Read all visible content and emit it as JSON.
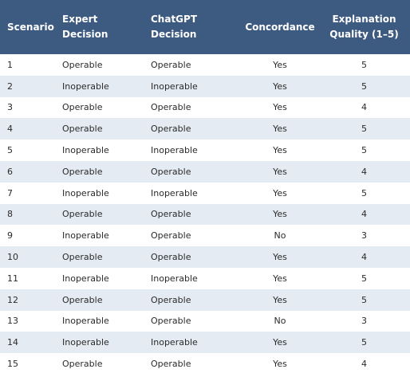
{
  "table": {
    "headers": {
      "scenario": "Scenario",
      "expert": "Expert Decision",
      "chatgpt": "ChatGPT Decision",
      "concordance": "Concordance",
      "quality_line1": "Explanation",
      "quality_line2": "Quality (1–5)"
    },
    "rows": [
      {
        "scenario": "1",
        "expert": "Operable",
        "chatgpt": "Operable",
        "concordance": "Yes",
        "quality": "5"
      },
      {
        "scenario": "2",
        "expert": "Inoperable",
        "chatgpt": "Inoperable",
        "concordance": "Yes",
        "quality": "5"
      },
      {
        "scenario": "3",
        "expert": "Operable",
        "chatgpt": "Operable",
        "concordance": "Yes",
        "quality": "4"
      },
      {
        "scenario": "4",
        "expert": "Operable",
        "chatgpt": "Operable",
        "concordance": "Yes",
        "quality": "5"
      },
      {
        "scenario": "5",
        "expert": "Inoperable",
        "chatgpt": "Inoperable",
        "concordance": "Yes",
        "quality": "5"
      },
      {
        "scenario": "6",
        "expert": "Operable",
        "chatgpt": "Operable",
        "concordance": "Yes",
        "quality": "4"
      },
      {
        "scenario": "7",
        "expert": "Inoperable",
        "chatgpt": "Inoperable",
        "concordance": "Yes",
        "quality": "5"
      },
      {
        "scenario": "8",
        "expert": "Operable",
        "chatgpt": "Operable",
        "concordance": "Yes",
        "quality": "4"
      },
      {
        "scenario": "9",
        "expert": "Inoperable",
        "chatgpt": "Operable",
        "concordance": "No",
        "quality": "3"
      },
      {
        "scenario": "10",
        "expert": "Operable",
        "chatgpt": "Operable",
        "concordance": "Yes",
        "quality": "4"
      },
      {
        "scenario": "11",
        "expert": "Inoperable",
        "chatgpt": "Inoperable",
        "concordance": "Yes",
        "quality": "5"
      },
      {
        "scenario": "12",
        "expert": "Operable",
        "chatgpt": "Operable",
        "concordance": "Yes",
        "quality": "5"
      },
      {
        "scenario": "13",
        "expert": "Inoperable",
        "chatgpt": "Operable",
        "concordance": "No",
        "quality": "3"
      },
      {
        "scenario": "14",
        "expert": "Inoperable",
        "chatgpt": "Inoperable",
        "concordance": "Yes",
        "quality": "5"
      },
      {
        "scenario": "15",
        "expert": "Operable",
        "chatgpt": "Operable",
        "concordance": "Yes",
        "quality": "4"
      }
    ]
  },
  "colors": {
    "header_background": "#3d5a80",
    "header_text": "#ffffff",
    "stripe_row": "#e4ebf2"
  }
}
